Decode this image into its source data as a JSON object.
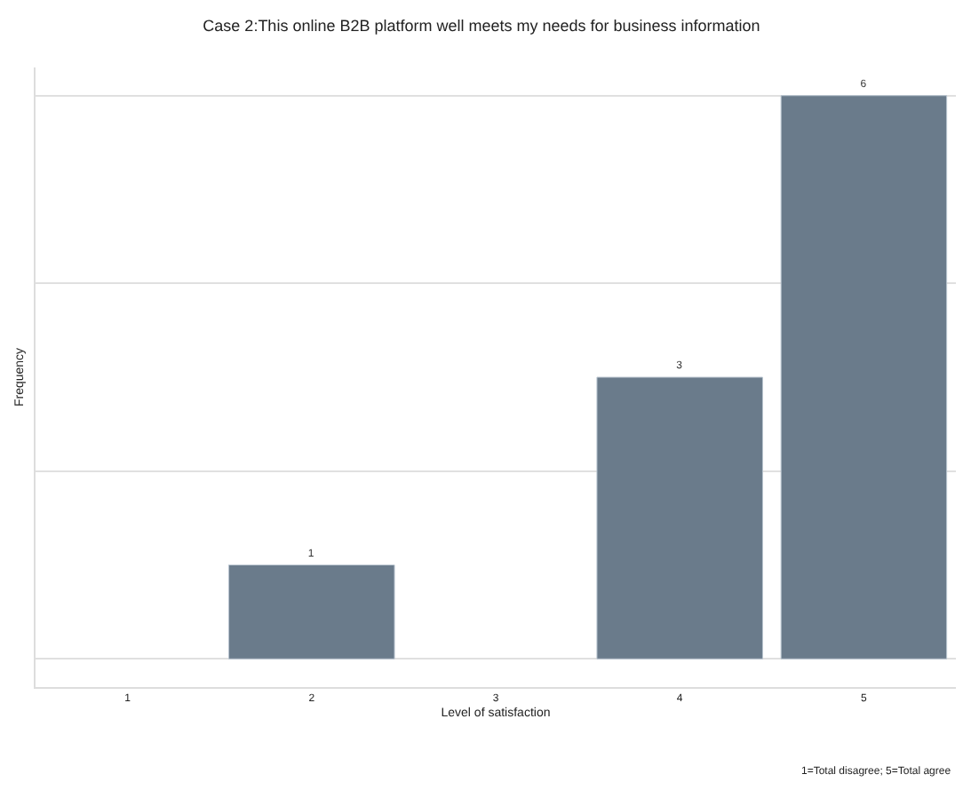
{
  "chart_data": {
    "type": "bar",
    "title": "Case 2:This online B2B platform well meets my needs for business information",
    "xlabel": "Level of satisfaction",
    "ylabel": "Frequency",
    "categories": [
      "1",
      "2",
      "3",
      "4",
      "5"
    ],
    "values": [
      null,
      1,
      null,
      3,
      6
    ],
    "color": "#6a7b8b",
    "data_labels": true,
    "ylim": [
      -0.3,
      6.3
    ],
    "yticks": [
      {
        "value": 0,
        "label": null
      },
      {
        "value": 2,
        "label": null
      },
      {
        "value": 4,
        "label": null
      },
      {
        "value": 6,
        "label": null
      }
    ],
    "tick_labels": "x",
    "grid": "y",
    "legend": false,
    "annotations": [
      "1=Total disagree; 5=Total agree"
    ]
  }
}
